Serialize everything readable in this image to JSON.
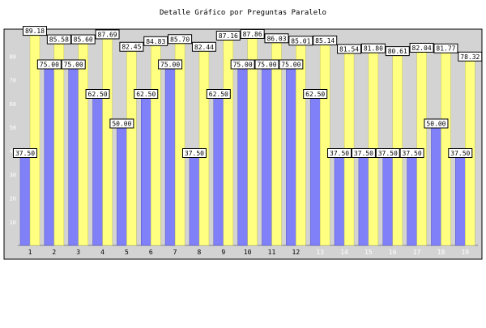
{
  "chart_data": {
    "type": "bar",
    "title": "Detalle Gráfico por Preguntas Paralelo",
    "xlabel": "",
    "ylabel": "",
    "ylim": [
      0,
      90
    ],
    "yticks": [
      10,
      20,
      30,
      40,
      50,
      60,
      70,
      80
    ],
    "grid": false,
    "legend": "none",
    "categories": [
      "1",
      "2",
      "3",
      "4",
      "5",
      "6",
      "7",
      "8",
      "9",
      "10",
      "11",
      "12",
      "13",
      "14",
      "15",
      "16",
      "17",
      "18",
      "19"
    ],
    "faded_category_labels": [
      "13",
      "14",
      "15",
      "16",
      "17",
      "18",
      "19"
    ],
    "series": [
      {
        "values": [
          37.5,
          75.0,
          75.0,
          62.5,
          50.0,
          62.5,
          75.0,
          37.5,
          62.5,
          75.0,
          75.0,
          75.0,
          62.5,
          37.5,
          37.5,
          37.5,
          37.5,
          50.0,
          37.5
        ]
      },
      {
        "values": [
          89.18,
          85.58,
          85.6,
          87.69,
          82.45,
          84.83,
          85.7,
          82.44,
          87.16,
          87.86,
          86.03,
          85.01,
          85.14,
          81.54,
          81.8,
          80.61,
          82.04,
          81.77,
          78.32
        ]
      }
    ],
    "colors": {
      "series_a": "#8080f8",
      "series_b": "#ffff80",
      "plot_bg": "#d3d3d3",
      "plot_border": "#000000",
      "label_bg": "#ffffff"
    }
  }
}
